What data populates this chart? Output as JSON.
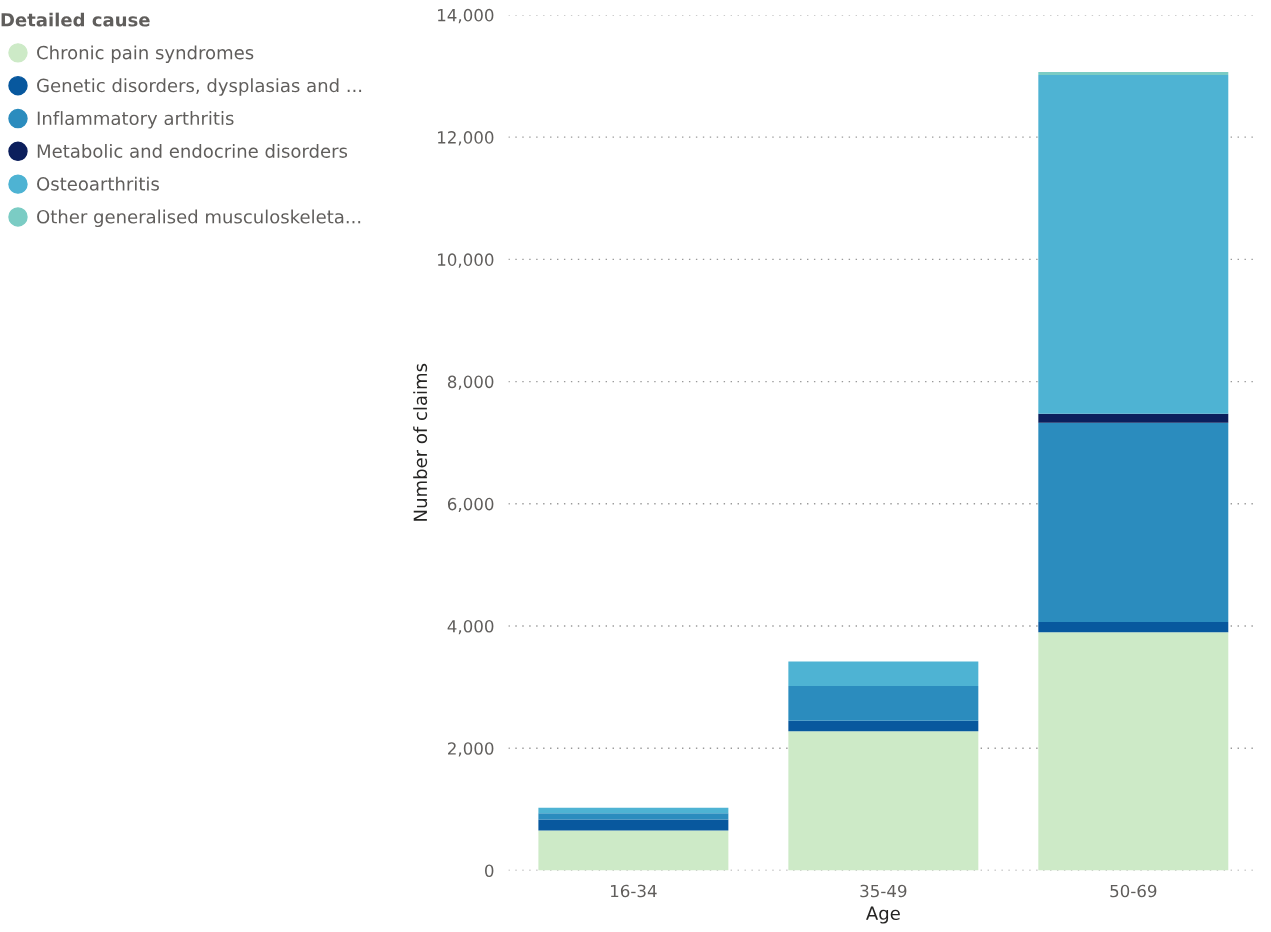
{
  "chart_data": {
    "type": "bar",
    "stacked": true,
    "xlabel": "Age",
    "ylabel": "Number of claims",
    "legend_title": "Detailed cause",
    "legend": "top left",
    "grid": "y",
    "categories": [
      "16-34",
      "35-49",
      "50-69"
    ],
    "ylim": [
      0,
      14000
    ],
    "yticks": [
      {
        "value": 0,
        "label": "0"
      },
      {
        "value": 2000,
        "label": "2,000"
      },
      {
        "value": 4000,
        "label": "4,000"
      },
      {
        "value": 6000,
        "label": "6,000"
      },
      {
        "value": 8000,
        "label": "8,000"
      },
      {
        "value": 10000,
        "label": "10,000"
      },
      {
        "value": 12000,
        "label": "12,000"
      },
      {
        "value": 14000,
        "label": "14,000"
      }
    ],
    "series": [
      {
        "name": "Chronic pain syndromes",
        "color": "#cdeac7",
        "values": [
          655,
          2280,
          3900
        ]
      },
      {
        "name": "Genetic disorders, dysplasias and ...",
        "color": "#08589e",
        "values": [
          180,
          170,
          165
        ]
      },
      {
        "name": "Inflammatory arthritis",
        "color": "#2b8cbe",
        "values": [
          100,
          570,
          3260
        ]
      },
      {
        "name": "Metabolic and endocrine disorders",
        "color": "#0c1f5c",
        "values": [
          0,
          0,
          150
        ]
      },
      {
        "name": "Osteoarthritis",
        "color": "#4eb3d3",
        "values": [
          90,
          400,
          5540
        ]
      },
      {
        "name": "Other generalised musculoskeleta...",
        "color": "#7bccc4",
        "values": [
          0,
          0,
          50
        ]
      }
    ]
  }
}
